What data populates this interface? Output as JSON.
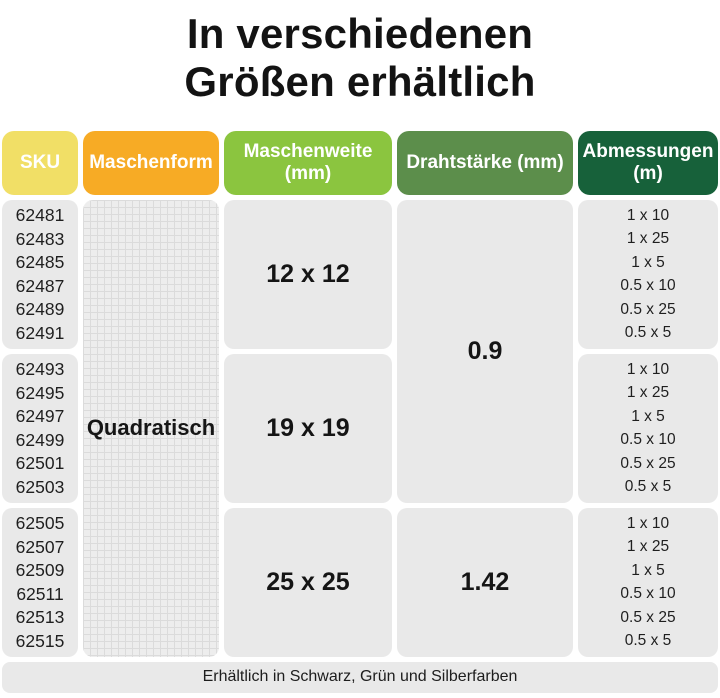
{
  "title": {
    "line1": "In verschiedenen",
    "line2": "Größen erhältlich"
  },
  "columns": [
    {
      "label": "SKU",
      "unit": "",
      "color": "#f1df66"
    },
    {
      "label": "Maschenform",
      "unit": "",
      "color": "#f7ab25"
    },
    {
      "label": "Maschenweite",
      "unit": "(mm)",
      "color": "#8bc53f"
    },
    {
      "label": "Drahtstärke (mm)",
      "unit": "",
      "color": "#5c8e4b"
    },
    {
      "label": "Abmessungen",
      "unit": "(m)",
      "color": "#17613a"
    }
  ],
  "maschenform_value": "Quadratisch",
  "groups": [
    {
      "skus": [
        "62481",
        "62483",
        "62485",
        "62487",
        "62489",
        "62491"
      ],
      "maschenweite": "12 x 12",
      "abmessungen": [
        "1 x 10",
        "1 x 25",
        "1 x 5",
        "0.5 x 10",
        "0.5 x 25",
        "0.5 x 5"
      ]
    },
    {
      "skus": [
        "62493",
        "62495",
        "62497",
        "62499",
        "62501",
        "62503"
      ],
      "maschenweite": "19 x 19",
      "abmessungen": [
        "1 x 10",
        "1 x 25",
        "1 x 5",
        "0.5 x 10",
        "0.5 x 25",
        "0.5 x 5"
      ]
    },
    {
      "skus": [
        "62505",
        "62507",
        "62509",
        "62511",
        "62513",
        "62515"
      ],
      "maschenweite": "25 x 25",
      "abmessungen": [
        "1 x 10",
        "1 x 25",
        "1 x 5",
        "0.5 x 10",
        "0.5 x 25",
        "0.5 x 5"
      ]
    }
  ],
  "drahtstaerke": [
    {
      "value": "0.9"
    },
    {
      "value": "1.42"
    }
  ],
  "footer": {
    "text": "Erhältlich in Schwarz, Grün und Silberfarben"
  },
  "chart_data": {
    "type": "table",
    "title": "In verschiedenen Größen erhältlich",
    "columns": [
      "SKU",
      "Maschenform",
      "Maschenweite (mm)",
      "Drahtstärke (mm)",
      "Abmessungen (m)"
    ],
    "rows": [
      [
        "62481",
        "Quadratisch",
        "12 x 12",
        "0.9",
        "1 x 10"
      ],
      [
        "62483",
        "Quadratisch",
        "12 x 12",
        "0.9",
        "1 x 25"
      ],
      [
        "62485",
        "Quadratisch",
        "12 x 12",
        "0.9",
        "1 x 5"
      ],
      [
        "62487",
        "Quadratisch",
        "12 x 12",
        "0.9",
        "0.5 x 10"
      ],
      [
        "62489",
        "Quadratisch",
        "12 x 12",
        "0.9",
        "0.5 x 25"
      ],
      [
        "62491",
        "Quadratisch",
        "12 x 12",
        "0.9",
        "0.5 x 5"
      ],
      [
        "62493",
        "Quadratisch",
        "19 x 19",
        "0.9",
        "1 x 10"
      ],
      [
        "62495",
        "Quadratisch",
        "19 x 19",
        "0.9",
        "1 x 25"
      ],
      [
        "62497",
        "Quadratisch",
        "19 x 19",
        "0.9",
        "1 x 5"
      ],
      [
        "62499",
        "Quadratisch",
        "19 x 19",
        "0.9",
        "0.5 x 10"
      ],
      [
        "62501",
        "Quadratisch",
        "19 x 19",
        "0.9",
        "0.5 x 25"
      ],
      [
        "62503",
        "Quadratisch",
        "19 x 19",
        "0.9",
        "0.5 x 5"
      ],
      [
        "62505",
        "Quadratisch",
        "25 x 25",
        "1.42",
        "1 x 10"
      ],
      [
        "62507",
        "Quadratisch",
        "25 x 25",
        "1.42",
        "1 x 25"
      ],
      [
        "62509",
        "Quadratisch",
        "25 x 25",
        "1.42",
        "1 x 5"
      ],
      [
        "62511",
        "Quadratisch",
        "25 x 25",
        "1.42",
        "0.5 x 10"
      ],
      [
        "62513",
        "Quadratisch",
        "25 x 25",
        "1.42",
        "0.5 x 25"
      ],
      [
        "62515",
        "Quadratisch",
        "25 x 25",
        "1.42",
        "0.5 x 5"
      ]
    ],
    "footnote": "Erhältlich in Schwarz, Grün und Silberfarben",
    "header_colors": [
      "#f1df66",
      "#f7ab25",
      "#8bc53f",
      "#5c8e4b",
      "#17613a"
    ],
    "merged_cells": {
      "Maschenform": "Quadratisch gilt für alle 18 SKUs",
      "Drahtstärke (mm)": "0.9 gilt für 12 x 12 und 19 x 19; 1.42 gilt für 25 x 25"
    }
  }
}
